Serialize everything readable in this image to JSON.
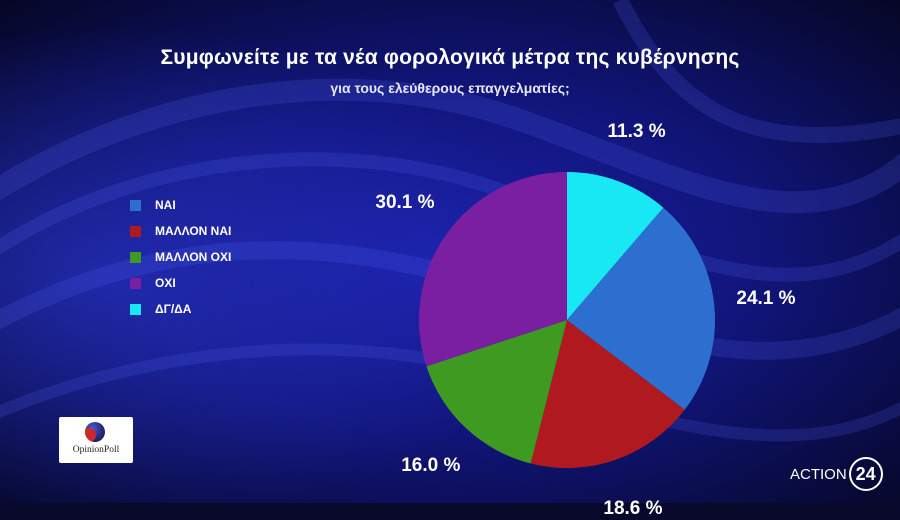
{
  "title": "Συμφωνείτε με τα νέα φορολογικά μέτρα της κυβέρνησης",
  "subtitle": "για τους ελεύθερους επαγγελματίες;",
  "chart_data": {
    "type": "pie",
    "title": "Συμφωνείτε με τα νέα φορολογικά μέτρα της κυβέρνησης",
    "subtitle": "για τους ελεύθερους επαγγελματίες;",
    "legend_position": "left",
    "slices": [
      {
        "label": "ΝΑΙ",
        "value": 24.1,
        "value_label": "24.1 %",
        "color": "#2d6fcf"
      },
      {
        "label": "ΜΑΛΛΟΝ ΝΑΙ",
        "value": 18.6,
        "value_label": "18.6 %",
        "color": "#b01a1e"
      },
      {
        "label": "ΜΑΛΛΟΝ ΟΧΙ",
        "value": 16.0,
        "value_label": "16.0 %",
        "color": "#3f9a22"
      },
      {
        "label": "ΟΧΙ",
        "value": 30.1,
        "value_label": "30.1 %",
        "color": "#7b1fa2"
      },
      {
        "label": "ΔΓ/ΔΑ",
        "value": 11.3,
        "value_label": "11.3 %",
        "color": "#18e8f4"
      }
    ]
  },
  "logos": {
    "left": "OpinionPoll",
    "right_text": "ACTION",
    "right_number": "24"
  }
}
